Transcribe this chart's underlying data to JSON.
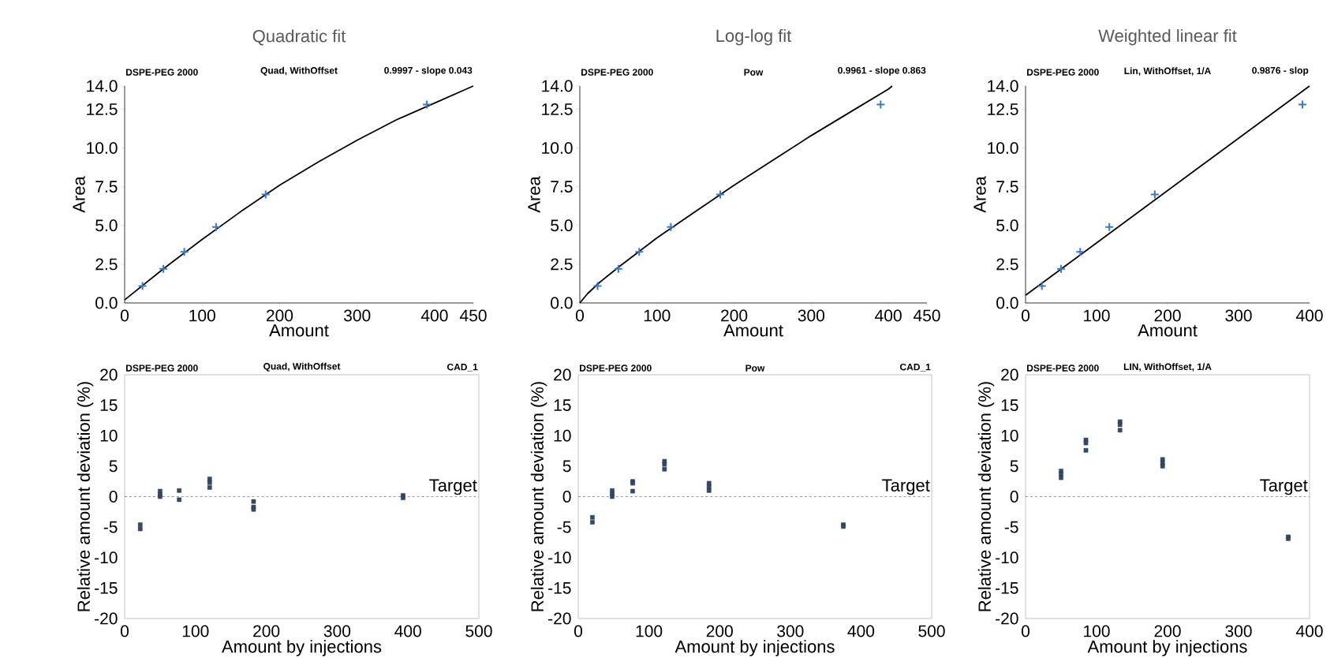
{
  "chart_data": [
    {
      "type": "scatter",
      "title": "Quadratic fit",
      "xlabel": "Amount",
      "ylabel": "Area",
      "xlim": [
        0,
        450
      ],
      "xticks": [
        0,
        100,
        200,
        300,
        400,
        450
      ],
      "ylim": [
        0,
        14
      ],
      "yticks": [
        {
          "value": 0,
          "label": "0.0"
        },
        {
          "value": 2.5,
          "label": "2.5"
        },
        {
          "value": 5,
          "label": "5.0"
        },
        {
          "value": 7.5,
          "label": "7.5"
        },
        {
          "value": 10,
          "label": "10.0"
        },
        {
          "value": 12.5,
          "label": "12.5"
        },
        {
          "value": 14,
          "label": "14.0"
        }
      ],
      "annotations": [
        "DSPE-PEG 2000",
        "Quad, WithOffset",
        "0.9997 - slope 0.043"
      ],
      "series": [
        {
          "type": "scatter",
          "marker": "cross",
          "color": "#3a78c8",
          "x": [
            23,
            50,
            77,
            118,
            182,
            390
          ],
          "values": [
            1.1,
            2.2,
            3.3,
            4.9,
            7.0,
            12.8
          ]
        },
        {
          "type": "line",
          "marker": "none",
          "color": "#000000",
          "x": [
            0,
            50,
            100,
            150,
            200,
            250,
            300,
            350,
            400,
            450
          ],
          "values": [
            0.2,
            2.2,
            4.1,
            5.9,
            7.6,
            9.1,
            10.5,
            11.8,
            12.9,
            14.0
          ]
        }
      ]
    },
    {
      "type": "scatter",
      "title": "Log-log fit",
      "xlabel": "Amount",
      "ylabel": "Area",
      "xlim": [
        0,
        450
      ],
      "xticks": [
        0,
        100,
        200,
        300,
        400,
        450
      ],
      "ylim": [
        0,
        14
      ],
      "yticks": [
        {
          "value": 0,
          "label": "0.0"
        },
        {
          "value": 2.5,
          "label": "2.5"
        },
        {
          "value": 5,
          "label": "5.0"
        },
        {
          "value": 7.5,
          "label": "7.5"
        },
        {
          "value": 10,
          "label": "10.0"
        },
        {
          "value": 12.5,
          "label": "12.5"
        },
        {
          "value": 14,
          "label": "14.0"
        }
      ],
      "annotations": [
        "DSPE-PEG 2000",
        "Pow",
        "0.9961 - slope 0.863"
      ],
      "series": [
        {
          "type": "scatter",
          "marker": "cross",
          "color": "#3a78c8",
          "x": [
            23,
            50,
            77,
            118,
            182,
            390
          ],
          "values": [
            1.1,
            2.2,
            3.3,
            4.9,
            7.0,
            12.8
          ]
        },
        {
          "type": "line",
          "marker": "none",
          "color": "#000000",
          "x": [
            0,
            10,
            25,
            50,
            100,
            150,
            200,
            250,
            300,
            350,
            400,
            405
          ],
          "values": [
            0,
            0.6,
            1.3,
            2.3,
            4.2,
            5.9,
            7.6,
            9.2,
            10.8,
            12.3,
            13.8,
            14.0
          ]
        }
      ]
    },
    {
      "type": "scatter",
      "title": "Weighted linear fit",
      "xlabel": "Amount",
      "ylabel": "Area",
      "xlim": [
        0,
        400
      ],
      "xticks": [
        0,
        100,
        200,
        300,
        400
      ],
      "ylim": [
        0,
        14
      ],
      "yticks": [
        {
          "value": 0,
          "label": "0.0"
        },
        {
          "value": 2.5,
          "label": "2.5"
        },
        {
          "value": 5,
          "label": "5.0"
        },
        {
          "value": 7.5,
          "label": "7.5"
        },
        {
          "value": 10,
          "label": "10.0"
        },
        {
          "value": 12.5,
          "label": "12.5"
        },
        {
          "value": 14,
          "label": "14.0"
        }
      ],
      "annotations": [
        "DSPE-PEG 2000",
        "Lin, WithOffset, 1/A",
        "0.9876 - slop"
      ],
      "series": [
        {
          "type": "scatter",
          "marker": "cross",
          "color": "#3a78c8",
          "x": [
            23,
            50,
            77,
            118,
            182,
            390
          ],
          "values": [
            1.1,
            2.2,
            3.3,
            4.9,
            7.0,
            12.8
          ]
        },
        {
          "type": "line",
          "marker": "none",
          "color": "#000000",
          "x": [
            0,
            400
          ],
          "values": [
            0.5,
            14.0
          ]
        }
      ]
    },
    {
      "type": "scatter",
      "xlabel": "Amount by injections",
      "ylabel": "Relative amount deviation (%)",
      "xlim": [
        0,
        500
      ],
      "xticks": [
        0,
        100,
        200,
        300,
        400,
        500
      ],
      "ylim": [
        -20,
        20
      ],
      "yticks": [
        -20,
        -15,
        -10,
        -5,
        0,
        5,
        10,
        15,
        20
      ],
      "annotations": [
        "DSPE-PEG 2000",
        "Quad, WithOffset",
        "CAD_1"
      ],
      "ref_lines": [
        {
          "axis": "y",
          "value": 0,
          "label": "Target",
          "line_style": "dashed"
        }
      ],
      "series": [
        {
          "type": "scatter",
          "marker": "square",
          "color": "#2f4a6e",
          "x": [
            22,
            22,
            50,
            50,
            50,
            77,
            77,
            120,
            120,
            120,
            182,
            182,
            182,
            393,
            393
          ],
          "values": [
            -4.6,
            -5.3,
            0.9,
            0.3,
            0,
            1.0,
            -0.5,
            2.9,
            2.3,
            1.5,
            -0.8,
            -1.7,
            -2.1,
            0.2,
            -0.2
          ]
        }
      ]
    },
    {
      "type": "scatter",
      "xlabel": "Amount by injections",
      "ylabel": "Relative amount deviation (%)",
      "xlim": [
        0,
        500
      ],
      "xticks": [
        0,
        100,
        200,
        300,
        400,
        500
      ],
      "ylim": [
        -20,
        20
      ],
      "yticks": [
        -20,
        -15,
        -10,
        -5,
        0,
        5,
        10,
        15,
        20
      ],
      "annotations": [
        "DSPE-PEG 2000",
        "Pow",
        "CAD_1"
      ],
      "ref_lines": [
        {
          "axis": "y",
          "value": 0,
          "label": "Target",
          "line_style": "dashed"
        }
      ],
      "series": [
        {
          "type": "scatter",
          "marker": "square",
          "color": "#2f4a6e",
          "x": [
            20,
            20,
            48,
            48,
            48,
            77,
            77,
            77,
            122,
            122,
            122,
            185,
            185,
            185,
            375,
            375
          ],
          "values": [
            -3.4,
            -4.2,
            1.0,
            0.5,
            0,
            2.5,
            2.2,
            0.9,
            5.8,
            5.3,
            4.5,
            2.2,
            1.6,
            1.0,
            -4.6,
            -4.9
          ]
        }
      ]
    },
    {
      "type": "scatter",
      "xlabel": "Amount by injections",
      "ylabel": "Relative amount deviation (%)",
      "xlim": [
        0,
        400
      ],
      "xticks": [
        0,
        100,
        200,
        300,
        400
      ],
      "ylim": [
        -20,
        20
      ],
      "yticks": [
        -20,
        -15,
        -10,
        -5,
        0,
        5,
        10,
        15,
        20
      ],
      "annotations": [
        "DSPE-PEG 2000",
        "LIN, WithOffset, 1/A"
      ],
      "ref_lines": [
        {
          "axis": "y",
          "value": 0,
          "label": "Target",
          "line_style": "dashed"
        }
      ],
      "series": [
        {
          "type": "scatter",
          "marker": "square",
          "color": "#2f4a6e",
          "x": [
            50,
            50,
            50,
            85,
            85,
            85,
            133,
            133,
            133,
            193,
            193,
            193,
            370,
            370
          ],
          "values": [
            4.2,
            3.7,
            3.1,
            9.3,
            8.8,
            7.6,
            12.3,
            11.8,
            10.9,
            6.1,
            5.5,
            5.0,
            -6.6,
            -6.9
          ]
        }
      ]
    }
  ]
}
